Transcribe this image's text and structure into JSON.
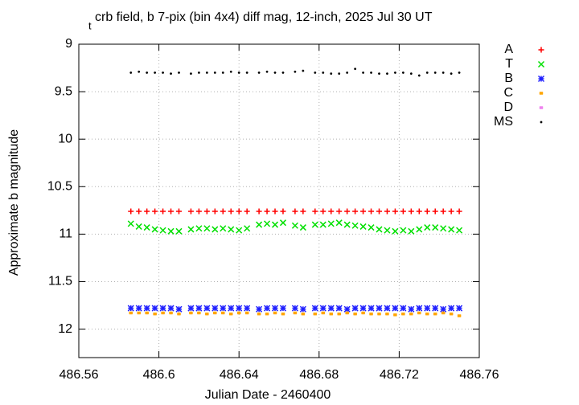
{
  "chart_data": {
    "type": "scatter",
    "title_prefix": "t",
    "title": "crb field, b 7-pix (bin 4x4) diff mag, 12-inch, 2025 Jul 30 UT",
    "x_label": "Julian Date - 2460400",
    "y_label": "Approximate b magnitude",
    "xlim": [
      486.56,
      486.76
    ],
    "xticks": [
      486.56,
      486.6,
      486.64,
      486.68,
      486.72,
      486.76
    ],
    "ylim": [
      12.3,
      9
    ],
    "yticks": [
      9,
      9.5,
      10,
      10.5,
      11,
      11.5,
      12
    ],
    "grid": true,
    "legend": "outside-right",
    "x": [
      486.586,
      486.59,
      486.594,
      486.598,
      486.602,
      486.606,
      486.61,
      486.616,
      486.62,
      486.624,
      486.628,
      486.632,
      486.636,
      486.64,
      486.644,
      486.65,
      486.654,
      486.658,
      486.662,
      486.668,
      486.672,
      486.678,
      486.682,
      486.686,
      486.69,
      486.694,
      486.698,
      486.702,
      486.706,
      486.71,
      486.714,
      486.718,
      486.722,
      486.726,
      486.73,
      486.734,
      486.738,
      486.742,
      486.746,
      486.75
    ],
    "series": [
      {
        "name": "A",
        "color": "#ff0000",
        "marker": "plus",
        "values": [
          10.76,
          10.76,
          10.76,
          10.76,
          10.76,
          10.76,
          10.76,
          10.76,
          10.76,
          10.76,
          10.76,
          10.76,
          10.76,
          10.76,
          10.76,
          10.76,
          10.76,
          10.76,
          10.76,
          10.76,
          10.76,
          10.76,
          10.76,
          10.76,
          10.76,
          10.76,
          10.76,
          10.76,
          10.76,
          10.76,
          10.76,
          10.76,
          10.76,
          10.76,
          10.76,
          10.76,
          10.76,
          10.76,
          10.76,
          10.76
        ]
      },
      {
        "name": "T",
        "color": "#00e000",
        "marker": "cross",
        "values": [
          10.89,
          10.92,
          10.93,
          10.95,
          10.96,
          10.97,
          10.97,
          10.95,
          10.94,
          10.94,
          10.95,
          10.94,
          10.95,
          10.96,
          10.94,
          10.9,
          10.89,
          10.9,
          10.88,
          10.91,
          10.93,
          10.9,
          10.9,
          10.89,
          10.88,
          10.9,
          10.91,
          10.92,
          10.93,
          10.95,
          10.96,
          10.97,
          10.96,
          10.97,
          10.95,
          10.93,
          10.93,
          10.94,
          10.95,
          10.96
        ]
      },
      {
        "name": "B",
        "color": "#2020ff",
        "marker": "star",
        "values": [
          11.78,
          11.78,
          11.78,
          11.78,
          11.78,
          11.78,
          11.79,
          11.78,
          11.78,
          11.78,
          11.78,
          11.78,
          11.78,
          11.78,
          11.78,
          11.79,
          11.78,
          11.78,
          11.78,
          11.78,
          11.79,
          11.78,
          11.78,
          11.78,
          11.78,
          11.79,
          11.78,
          11.78,
          11.78,
          11.78,
          11.78,
          11.78,
          11.78,
          11.79,
          11.78,
          11.78,
          11.78,
          11.79,
          11.78,
          11.78
        ]
      },
      {
        "name": "C",
        "color": "#ffa500",
        "marker": "square",
        "values": [
          11.83,
          11.83,
          11.83,
          11.84,
          11.83,
          11.83,
          11.84,
          11.83,
          11.83,
          11.84,
          11.83,
          11.83,
          11.84,
          11.83,
          11.83,
          11.84,
          11.84,
          11.83,
          11.84,
          11.83,
          11.84,
          11.84,
          11.83,
          11.84,
          11.84,
          11.83,
          11.84,
          11.83,
          11.84,
          11.84,
          11.84,
          11.85,
          11.84,
          11.84,
          11.83,
          11.84,
          11.84,
          11.83,
          11.84,
          11.86
        ]
      },
      {
        "name": "D",
        "color": "#ee82ee",
        "marker": "square",
        "values": [
          null,
          null,
          null,
          null,
          null,
          null,
          null,
          null,
          null,
          null,
          null,
          null,
          null,
          null,
          null,
          null,
          null,
          null,
          null,
          null,
          null,
          null,
          null,
          null,
          null,
          null,
          null,
          null,
          null,
          null,
          null,
          null,
          null,
          null,
          null,
          null,
          null,
          null,
          null,
          null
        ]
      },
      {
        "name": "MS",
        "color": "#000000",
        "marker": "dot",
        "values": [
          9.3,
          9.29,
          9.3,
          9.3,
          9.3,
          9.31,
          9.3,
          9.31,
          9.3,
          9.3,
          9.3,
          9.3,
          9.29,
          9.3,
          9.3,
          9.3,
          9.29,
          9.3,
          9.3,
          9.29,
          9.28,
          9.3,
          9.3,
          9.31,
          9.31,
          9.3,
          9.26,
          9.3,
          9.3,
          9.31,
          9.31,
          9.3,
          9.3,
          9.31,
          9.33,
          9.3,
          9.3,
          9.3,
          9.31,
          9.3
        ]
      }
    ]
  }
}
